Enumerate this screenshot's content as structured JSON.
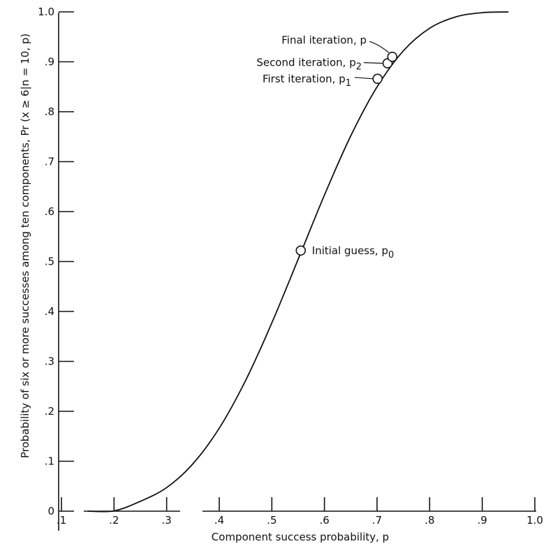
{
  "chart_data": {
    "type": "line",
    "title": "",
    "xlabel": "Component success probability, p",
    "ylabel": "Probability of six or more successes among ten components, Pr (x ≥ 6|n = 10, p)",
    "xlim": [
      0.1,
      1.0
    ],
    "ylim": [
      0,
      1.0
    ],
    "x_ticks": [
      {
        "value": 0.1,
        "label": ".1"
      },
      {
        "value": 0.2,
        "label": ".2"
      },
      {
        "value": 0.3,
        "label": ".3"
      },
      {
        "value": 0.4,
        "label": ".4"
      },
      {
        "value": 0.5,
        "label": ".5"
      },
      {
        "value": 0.6,
        "label": ".6"
      },
      {
        "value": 0.7,
        "label": ".7"
      },
      {
        "value": 0.8,
        "label": ".8"
      },
      {
        "value": 0.9,
        "label": ".9"
      },
      {
        "value": 1.0,
        "label": "1.0"
      }
    ],
    "y_ticks": [
      {
        "value": 0,
        "label": "0"
      },
      {
        "value": 0.1,
        "label": ".1"
      },
      {
        "value": 0.2,
        "label": ".2"
      },
      {
        "value": 0.3,
        "label": ".3"
      },
      {
        "value": 0.4,
        "label": ".4"
      },
      {
        "value": 0.5,
        "label": ".5"
      },
      {
        "value": 0.6,
        "label": ".6"
      },
      {
        "value": 0.7,
        "label": ".7"
      },
      {
        "value": 0.8,
        "label": ".8"
      },
      {
        "value": 0.9,
        "label": ".9"
      },
      {
        "value": 1.0,
        "label": "1.0"
      }
    ],
    "grid": false,
    "legend": "none",
    "series": [
      {
        "x": [
          0.15,
          0.2,
          0.25,
          0.3,
          0.35,
          0.4,
          0.45,
          0.5,
          0.55,
          0.6,
          0.65,
          0.7,
          0.75,
          0.8,
          0.85,
          0.9,
          0.95
        ],
        "values": [
          0.0,
          0.0006,
          0.0197,
          0.0473,
          0.0949,
          0.1662,
          0.2616,
          0.377,
          0.5044,
          0.6331,
          0.7515,
          0.8497,
          0.9219,
          0.9672,
          0.9901,
          0.9984,
          0.9999
        ]
      }
    ],
    "points": [
      {
        "x": 0.555,
        "y": 0.522,
        "label": "Initial guess, p",
        "sub": "0"
      },
      {
        "x": 0.701,
        "y": 0.866,
        "label": "First iteration, p",
        "sub": "1"
      },
      {
        "x": 0.72,
        "y": 0.897,
        "label": "Second iteration, p",
        "sub": "2"
      },
      {
        "x": 0.729,
        "y": 0.91,
        "label": "Final iteration, p",
        "sub": ""
      }
    ]
  }
}
